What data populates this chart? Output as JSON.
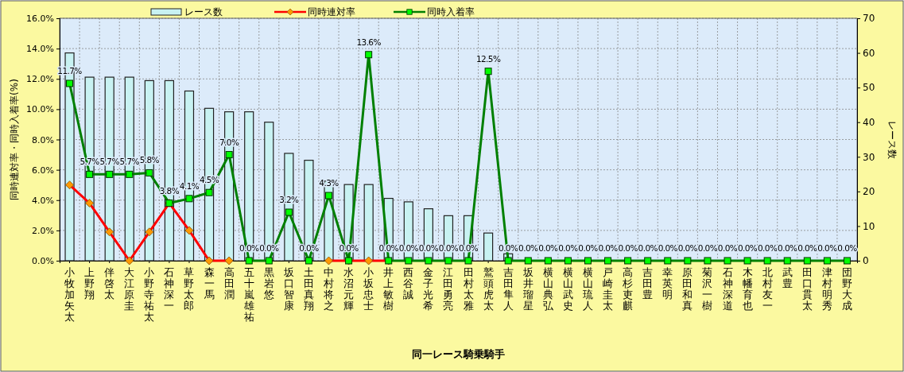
{
  "chart_data": {
    "type": "bar",
    "xlabel": "同一レース騎乗騎手",
    "ylabel": "同時連対率・同時入着率(%)",
    "y2label": "レース数",
    "categories": [
      "小牧加矢太",
      "上野翔",
      "伴啓太",
      "大江原圭",
      "小野寺祐太",
      "石神深一",
      "草野太郎",
      "森一馬",
      "高田潤",
      "五十嵐雄祐",
      "黒岩悠",
      "坂口智康",
      "土田真翔",
      "中村将之",
      "水沼元輝",
      "小坂忠士",
      "井上敏樹",
      "西谷誠",
      "金子光希",
      "江田勇亮",
      "田村太雅",
      "鷲頭虎太",
      "吉田隼人",
      "坂井瑠星",
      "横山典弘",
      "横山武史",
      "横山琉人",
      "戸崎圭太",
      "高杉吏麒",
      "吉田豊",
      "幸英明",
      "原田和真",
      "菊沢一樹",
      "石神深道",
      "木幡育也",
      "北村友一",
      "武豊",
      "田口貫太",
      "津村明秀",
      "団野大成"
    ],
    "series": [
      {
        "name": "レース数",
        "axis": "y2",
        "color": "#c8f2f2",
        "values": [
          60,
          53,
          53,
          53,
          52,
          52,
          49,
          44,
          43,
          43,
          40,
          31,
          29,
          23,
          22,
          22,
          18,
          17,
          15,
          13,
          13,
          8,
          2,
          null,
          null,
          null,
          null,
          null,
          null,
          null,
          null,
          null,
          null,
          null,
          null,
          null,
          null,
          null,
          null,
          null
        ]
      },
      {
        "name": "同時連対率",
        "type": "line",
        "color": "#ff0000",
        "marker": "diamond",
        "values": [
          5.0,
          3.8,
          1.9,
          0,
          1.9,
          3.8,
          2.0,
          0,
          0,
          null,
          null,
          null,
          null,
          0,
          0,
          0,
          0,
          null,
          null,
          null,
          null,
          null,
          null,
          null,
          null,
          null,
          null,
          null,
          null,
          null,
          null,
          null,
          null,
          null,
          null,
          null,
          null,
          null,
          null,
          null
        ]
      },
      {
        "name": "同時入着率",
        "type": "line",
        "color": "#008000",
        "marker": "square",
        "values": [
          11.7,
          5.7,
          5.7,
          5.7,
          5.8,
          3.8,
          4.1,
          4.5,
          7.0,
          0,
          0,
          3.2,
          0,
          4.3,
          0,
          13.6,
          0,
          0,
          0,
          0,
          0,
          12.5,
          0,
          0,
          0,
          0,
          0,
          0,
          0,
          0,
          0,
          0,
          0,
          0,
          0,
          0,
          0,
          0,
          0,
          0
        ],
        "value_labels": [
          "11.7%",
          "5.7%",
          "5.7%",
          "5.7%",
          "5.8%",
          "3.8%",
          "4.1%",
          "4.5%",
          "7.0%",
          "0.0%",
          "0.0%",
          "3.2%",
          "0.0%",
          "4.3%",
          "0.0%",
          "13.6%",
          "0.0%",
          "0.0%",
          "0.0%",
          "0.0%",
          "0.0%",
          "12.5%",
          "0.0%",
          "0.0%",
          "0.0%",
          "0.0%",
          "0.0%",
          "0.0%",
          "0.0%",
          "0.0%",
          "0.0%",
          "0.0%",
          "0.0%",
          "0.0%",
          "0.0%",
          "0.0%",
          "0.0%",
          "0.0%",
          "0.0%",
          "0.0%"
        ]
      }
    ],
    "ylim": [
      0,
      16
    ],
    "yticks": [
      {
        "value": 0,
        "label": "0.0%"
      },
      {
        "value": 2,
        "label": "2.0%"
      },
      {
        "value": 4,
        "label": "4.0%"
      },
      {
        "value": 6,
        "label": "6.0%"
      },
      {
        "value": 8,
        "label": "8.0%"
      },
      {
        "value": 10,
        "label": "10.0%"
      },
      {
        "value": 12,
        "label": "12.0%"
      },
      {
        "value": 14,
        "label": "14.0%"
      },
      {
        "value": 16,
        "label": "16.0%"
      }
    ],
    "y2lim": [
      0,
      70
    ],
    "y2ticks": [
      0,
      10,
      20,
      30,
      40,
      50,
      60,
      70
    ],
    "grid": true,
    "legend": "top"
  }
}
